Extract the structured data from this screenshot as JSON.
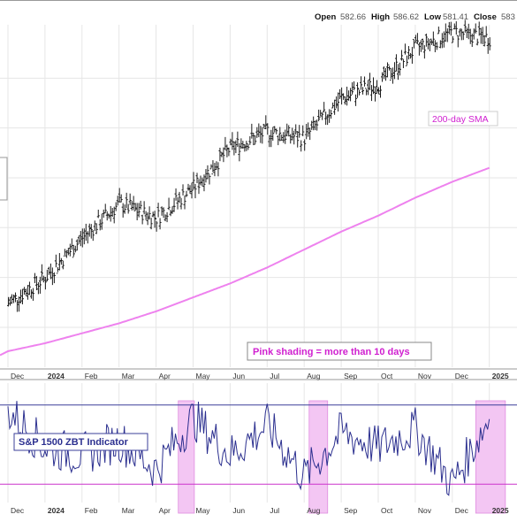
{
  "header": {
    "open_label": "Open",
    "open_value": "582.66",
    "high_label": "High",
    "high_value": "586.62",
    "low_label": "Low",
    "low_value": "581.41",
    "close_label": "Close",
    "close_value": "583"
  },
  "annotations": {
    "sma_label": "200-day SMA",
    "shading_note": "Pink shading = more than 10 days",
    "indicator_label": "S&P 1500 ZBT Indicator"
  },
  "colors": {
    "background": "#ffffff",
    "price_bars": "#1a1a1a",
    "sma_line": "#ee82ee",
    "indicator_line": "#2b2f8f",
    "shading": "#f3c6f3",
    "upper_threshold": "#3b3f9a",
    "lower_threshold": "#cc33cc",
    "note_text": "#d020d0",
    "grid": "#e6e6e6"
  },
  "chart_data": [
    {
      "type": "line",
      "panel": "price",
      "chart_style": "ohlc-bars",
      "series": [
        {
          "x": [
            "2023-12",
            "2024-01",
            "2024-02",
            "2024-03",
            "2024-04",
            "2024-05",
            "2024-06",
            "2024-07",
            "2024-08",
            "2024-09",
            "2024-10",
            "2024-11",
            "2024-12",
            "2025-01"
          ],
          "values": [
            462,
            475,
            495,
            512,
            505,
            520,
            540,
            548,
            545,
            565,
            572,
            590,
            598,
            595
          ]
        },
        {
          "name": "200-day SMA",
          "x": [
            "2023-12",
            "2024-01",
            "2024-02",
            "2024-03",
            "2024-04",
            "2024-05",
            "2024-06",
            "2024-07",
            "2024-08",
            "2024-09",
            "2024-10",
            "2024-11",
            "2024-12",
            "2025-01"
          ],
          "values": [
            438,
            442,
            447,
            452,
            458,
            465,
            472,
            480,
            489,
            498,
            506,
            515,
            523,
            530
          ]
        }
      ],
      "x_tick_labels": [
        "Dec",
        "2024",
        "Feb",
        "Mar",
        "Apr",
        "May",
        "Jun",
        "Jul",
        "Aug",
        "Sep",
        "Oct",
        "Nov",
        "Dec",
        "2025"
      ],
      "grid": true
    },
    {
      "type": "line",
      "panel": "indicator",
      "series": [
        {
          "name": "S&P 1500 ZBT Indicator",
          "x": [
            "2023-12",
            "2024-01",
            "2024-02",
            "2024-03",
            "2024-04",
            "2024-05",
            "2024-06",
            "2024-07",
            "2024-08",
            "2024-09",
            "2024-10",
            "2024-11",
            "2024-12",
            "2025-01"
          ],
          "values": [
            0.6,
            0.5,
            0.48,
            0.52,
            0.44,
            0.58,
            0.48,
            0.56,
            0.42,
            0.54,
            0.5,
            0.55,
            0.4,
            0.58
          ]
        }
      ],
      "thresholds": [
        0.615,
        0.4
      ],
      "shaded_periods": [
        [
          "2024-04-19",
          "2024-05-02"
        ],
        [
          "2024-08-05",
          "2024-08-20"
        ],
        [
          "2024-12-20",
          "2025-01-14"
        ]
      ],
      "x_tick_labels": [
        "Dec",
        "2024",
        "Feb",
        "Mar",
        "Apr",
        "May",
        "Jun",
        "Jul",
        "Aug",
        "Sep",
        "Oct",
        "Nov",
        "Dec",
        "2025"
      ],
      "grid": true
    }
  ]
}
